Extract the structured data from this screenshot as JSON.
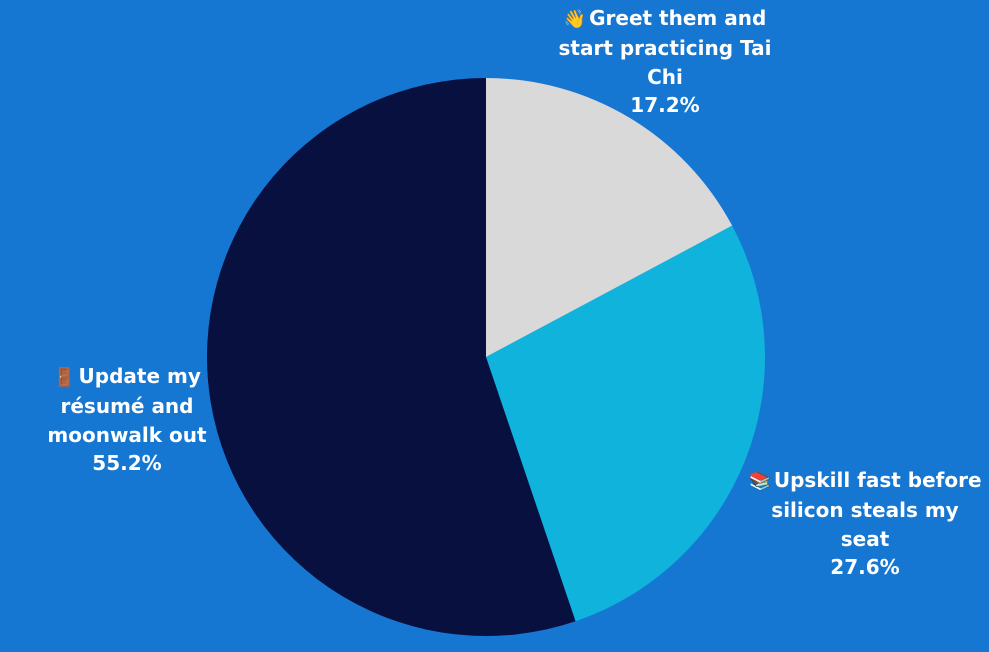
{
  "chart_data": {
    "type": "pie",
    "title": "",
    "start_angle_deg": 0,
    "direction": "clockwise",
    "slices": [
      {
        "label": "Greet them and start practicing Tai Chi",
        "emoji": "👋",
        "value": 17.2,
        "display": "17.2%",
        "color": "#d9d9d9"
      },
      {
        "label": "Upskill fast before silicon steals my seat",
        "emoji": "📚",
        "value": 27.6,
        "display": "27.6%",
        "color": "#0fb3dc"
      },
      {
        "label": "Update my résumé and moonwalk out",
        "emoji": "🚪",
        "value": 55.2,
        "display": "55.2%",
        "color": "#08103f"
      }
    ]
  }
}
